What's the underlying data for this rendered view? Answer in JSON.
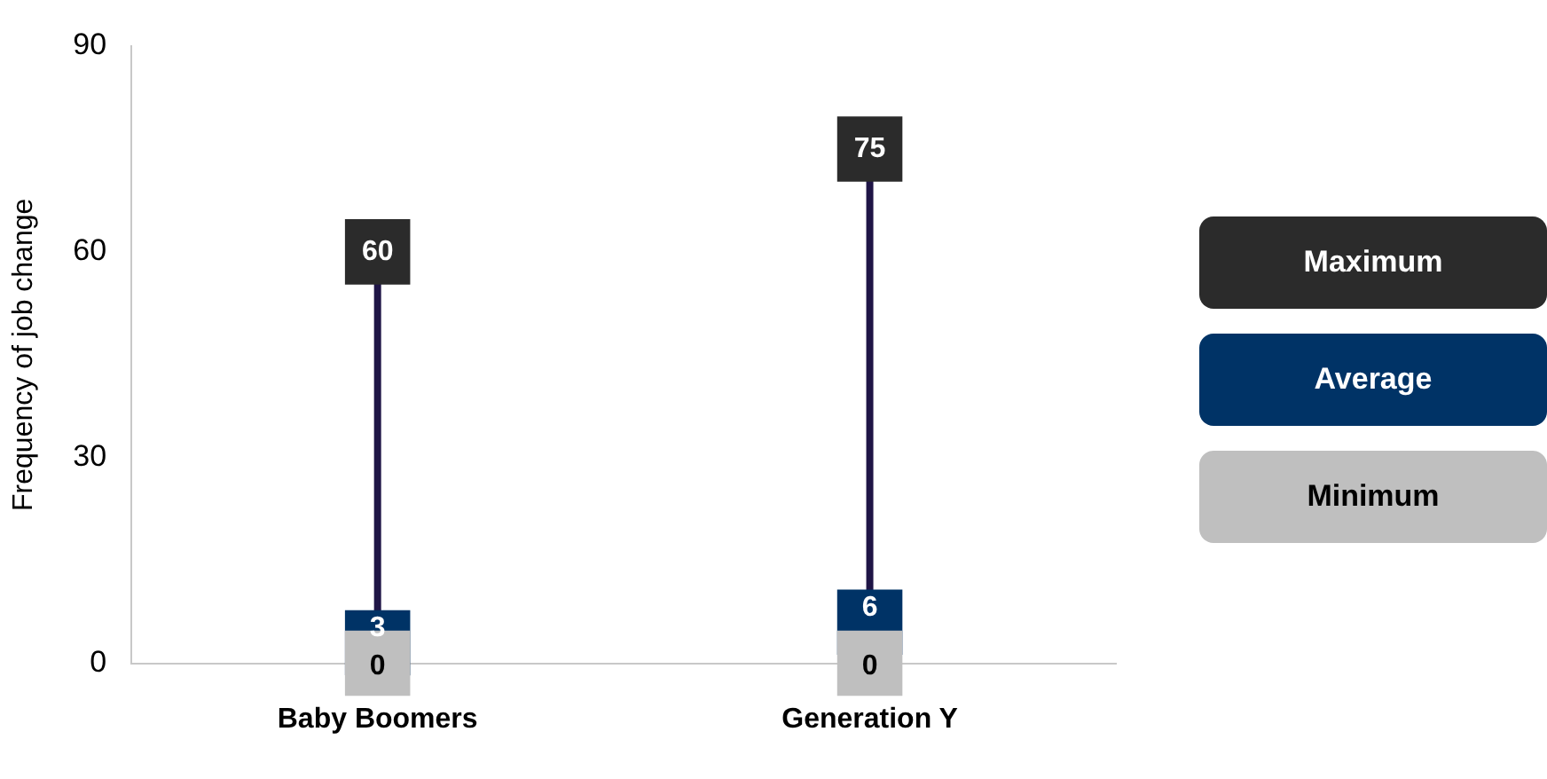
{
  "chart_data": {
    "type": "scatter",
    "ylabel": "Frequency of job change",
    "categories": [
      "Baby Boomers",
      "Generation Y"
    ],
    "series": [
      {
        "name": "Maximum",
        "color": "#2b2b2b",
        "values": [
          60,
          75
        ]
      },
      {
        "name": "Average",
        "color": "#003366",
        "values": [
          3,
          6
        ]
      },
      {
        "name": "Minimum",
        "color": "#bfbfbf",
        "values": [
          0,
          0
        ]
      }
    ],
    "ylim": [
      0,
      90
    ],
    "yticks": [
      0,
      30,
      60,
      90
    ],
    "grid": false,
    "legend": "right",
    "marker": "square",
    "data_labels": true
  }
}
